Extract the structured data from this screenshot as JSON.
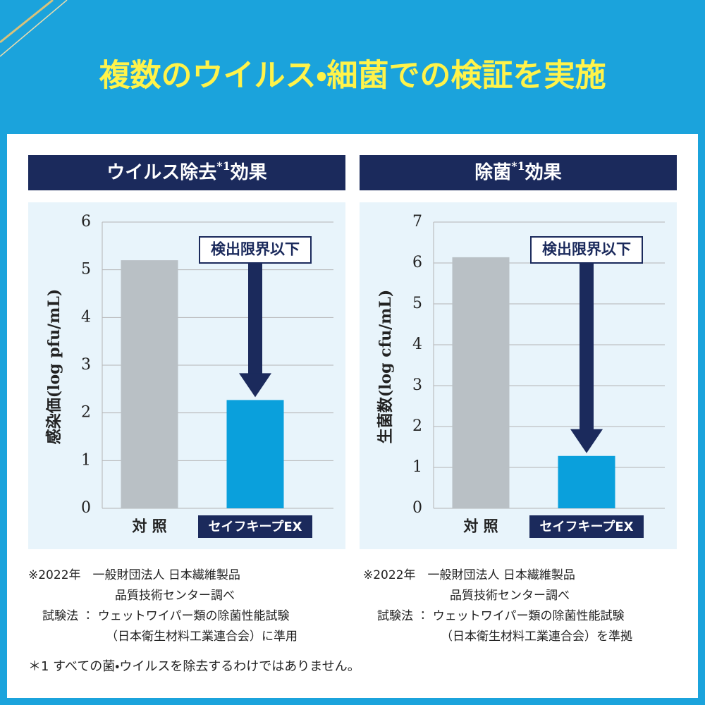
{
  "header": {
    "title": "複数のウイルス・細菌での検証を実施"
  },
  "chart_data": [
    {
      "type": "bar",
      "title": [
        "ウイルス除去",
        "*1",
        "効果"
      ],
      "y_label": "感染価(log pfu/mL)",
      "categories": [
        "対 照",
        "セイフキープEX"
      ],
      "values": [
        5.2,
        2.27
      ],
      "colors": [
        "#b9c0c5",
        "#0aa0dc"
      ],
      "ylim": [
        0,
        6
      ],
      "yticks": [
        0,
        1,
        2,
        3,
        4,
        5,
        6
      ],
      "grid": true,
      "annotation": "検出限界以下"
    },
    {
      "type": "bar",
      "title": [
        "除菌",
        "*1",
        "効果"
      ],
      "y_label": "生菌数(log cfu/mL)",
      "categories": [
        "対 照",
        "セイフキープEX"
      ],
      "values": [
        6.14,
        1.28
      ],
      "colors": [
        "#b9c0c5",
        "#0aa0dc"
      ],
      "ylim": [
        0,
        7
      ],
      "yticks": [
        0,
        1,
        2,
        3,
        4,
        5,
        6,
        7
      ],
      "grid": true,
      "annotation": "検出限界以下"
    }
  ],
  "notes": [
    [
      "※2022年　一般財団法人 日本繊維製品",
      "品質技術センター調べ",
      "試験法 ： ウェットワイパー類の除菌性能試験",
      "（日本衛生材料工業連合会）に準用"
    ],
    [
      "※2022年　一般財団法人 日本繊維製品",
      "品質技術センター調べ",
      "試験法 ： ウェットワイパー類の除菌性能試験",
      "（日本衛生材料工業連合会）を準拠"
    ]
  ],
  "footnote": "＊1 すべての菌・ウイルスを除去するわけではありません。"
}
